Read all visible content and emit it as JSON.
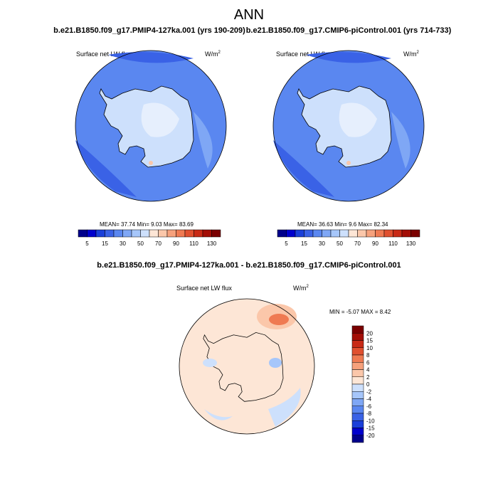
{
  "title": "ANN",
  "panels": [
    {
      "case": "b.e21.B1850.f09_g17.PMIP4-127ka.001 (yrs 190-209)",
      "variable": "Surface net LW flux",
      "units": "W/m",
      "units_power": "2",
      "mean_label": "MEAN=",
      "mean": 37.74,
      "min_label": "Min=",
      "min": 9.03,
      "max_label": "Max=",
      "max": 83.69,
      "colorbar": [
        5,
        15,
        30,
        50,
        70,
        90,
        110,
        130
      ]
    },
    {
      "case": "b.e21.B1850.f09_g17.CMIP6-piControl.001 (yrs 714-733)",
      "variable": "Surface net LW flux",
      "units": "W/m",
      "units_power": "2",
      "mean_label": "MEAN=",
      "mean": 36.63,
      "min_label": "Min=",
      "min": 9.6,
      "max_label": "Max=",
      "max": 82.34,
      "colorbar": [
        5,
        15,
        30,
        50,
        70,
        90,
        110,
        130
      ]
    }
  ],
  "difference": {
    "title": "b.e21.B1850.f09_g17.PMIP4-127ka.001 - b.e21.B1850.f09_g17.CMIP6-piControl.001",
    "variable": "Surface net LW flux",
    "units": "W/m",
    "units_power": "2",
    "min_label": "MIN =",
    "min": -5.07,
    "max_label": "MAX =",
    "max": 8.42,
    "colorbar": [
      20,
      15,
      10,
      8,
      6,
      4,
      2,
      0,
      -2,
      -4,
      -6,
      -8,
      -10,
      -15,
      -20
    ]
  }
}
